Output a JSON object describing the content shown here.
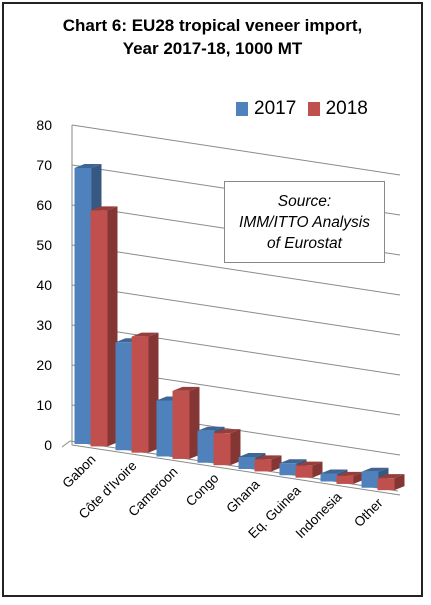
{
  "title": [
    "Chart 6: EU28 tropical veneer import,",
    "Year 2017-18, 1000 MT"
  ],
  "source_box": [
    "Source:",
    "IMM/ITTO Analysis",
    "of Eurostat"
  ],
  "colors": {
    "s2017": "#4f81bd",
    "s2018": "#c0504d"
  },
  "chart_data": {
    "type": "bar",
    "title": "Chart 6: EU28 tropical veneer import, Year 2017-18, 1000 MT",
    "categories": [
      "Gabon",
      "Côte d'Ivoire",
      "Cameroon",
      "Congo",
      "Ghana",
      "Eq. Guinea",
      "Indonesia",
      "Other"
    ],
    "series": [
      {
        "name": "2017",
        "values": [
          69,
          27,
          14,
          8,
          3,
          3,
          2,
          4
        ]
      },
      {
        "name": "2018",
        "values": [
          59,
          29,
          17,
          8,
          3,
          3,
          2,
          3
        ]
      }
    ],
    "y_ticks": [
      "0",
      "10",
      "20",
      "30",
      "40",
      "50",
      "60",
      "70",
      "80"
    ],
    "ylim": [
      0,
      80
    ],
    "grid": true,
    "legend": "top-right",
    "projection": "3d"
  }
}
